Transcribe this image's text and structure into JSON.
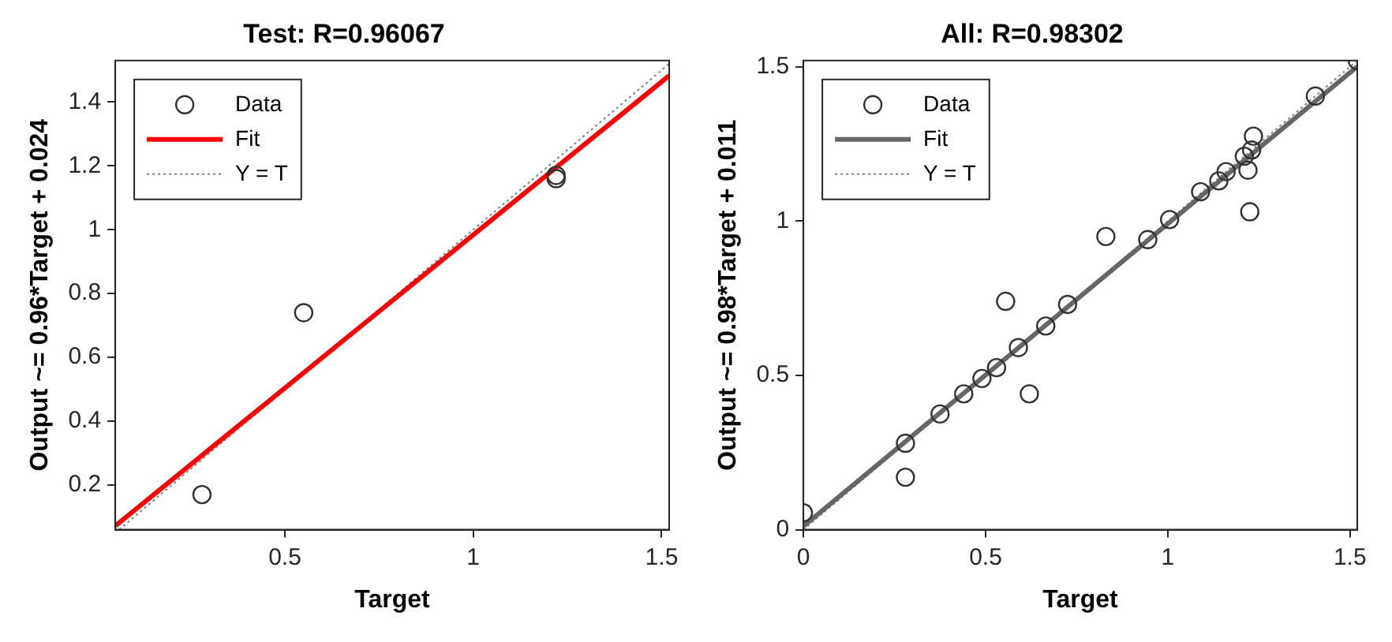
{
  "chart_data": [
    {
      "type": "scatter",
      "title": "Test: R=0.96067",
      "xlabel": "Target",
      "ylabel": "Output ~= 0.96*Target + 0.024",
      "xlim": [
        0.05,
        1.52
      ],
      "ylim": [
        0.06,
        1.53
      ],
      "xticks": [
        0.5,
        1,
        1.5
      ],
      "yticks": [
        0.2,
        0.4,
        0.6,
        0.8,
        1,
        1.2,
        1.4
      ],
      "legend": "top left",
      "grid": false,
      "series": [
        {
          "name": "Data",
          "type": "scatter",
          "marker": "circle",
          "color": "#333333",
          "x": [
            0.28,
            0.55,
            1.22,
            1.22
          ],
          "values": [
            0.17,
            0.74,
            1.17,
            1.16
          ]
        },
        {
          "name": "Fit",
          "type": "line",
          "marker": "none",
          "color": "#ff0000",
          "x": [
            0.05,
            1.52
          ],
          "values": [
            0.072,
            1.483
          ]
        },
        {
          "name": "Y = T",
          "type": "line",
          "marker": "none",
          "line_style": "dotted",
          "color": "#808080",
          "x": [
            0.06,
            1.52
          ],
          "values": [
            0.06,
            1.52
          ]
        }
      ]
    },
    {
      "type": "scatter",
      "title": "All: R=0.98302",
      "xlabel": "Target",
      "ylabel": "Output ~= 0.98*Target + 0.011",
      "xlim": [
        0,
        1.52
      ],
      "ylim": [
        0,
        1.52
      ],
      "xticks": [
        0,
        0.5,
        1,
        1.5
      ],
      "yticks": [
        0,
        0.5,
        1,
        1.5
      ],
      "legend": "top left",
      "grid": false,
      "series": [
        {
          "name": "Data",
          "type": "scatter",
          "marker": "circle",
          "color": "#333333",
          "x": [
            0,
            0.28,
            0.28,
            0.375,
            0.44,
            0.49,
            0.53,
            0.59,
            0.665,
            0.725,
            0.555,
            0.62,
            0.83,
            0.945,
            1.005,
            1.09,
            1.14,
            1.16,
            1.21,
            1.22,
            1.23,
            1.235,
            1.225,
            1.405,
            1.52
          ],
          "values": [
            0.055,
            0.28,
            0.17,
            0.375,
            0.44,
            0.49,
            0.525,
            0.59,
            0.66,
            0.73,
            0.74,
            0.44,
            0.95,
            0.94,
            1.005,
            1.095,
            1.13,
            1.16,
            1.21,
            1.165,
            1.23,
            1.275,
            1.03,
            1.405,
            1.52
          ]
        },
        {
          "name": "Fit",
          "type": "line",
          "marker": "none",
          "color": "#666666",
          "x": [
            0,
            1.52
          ],
          "values": [
            0.011,
            1.501
          ]
        },
        {
          "name": "Y = T",
          "type": "line",
          "marker": "none",
          "line_style": "dotted",
          "color": "#808080",
          "x": [
            0,
            1.52
          ],
          "values": [
            0,
            1.52
          ]
        }
      ]
    }
  ]
}
